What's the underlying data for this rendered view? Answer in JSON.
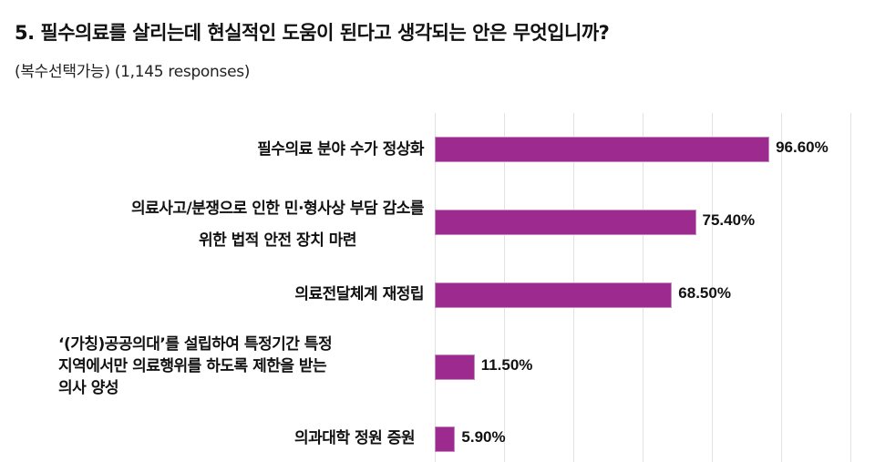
{
  "header": {
    "title": "5. 필수의료를 살리는데 현실적인 도움이 된다고 생각되는 안은 무엇입니까?",
    "subtitle": "(복수선택가능) (1,145 responses)"
  },
  "colors": {
    "bar": "#9c2a8f",
    "gridline": "#e3e3e3"
  },
  "chart_data": {
    "type": "bar",
    "orientation": "horizontal",
    "title": "5. 필수의료를 살리는데 현실적인 도움이 된다고 생각되는 안은 무엇입니까?",
    "subtitle": "(복수선택가능) (1,145 responses)",
    "xlabel": "",
    "ylabel": "",
    "xlim": [
      0,
      120
    ],
    "grid": true,
    "legend": null,
    "categories": [
      "필수의료 분야 수가 정상화",
      "의료사고/분쟁으로 인한 민·형사상 부담 감소를 위한 법적 안전 장치 마련",
      "의료전달체계 재정립",
      "'(가칭)공공의대'를 설립하여 특정기간 특정 지역에서만 의료행위를 하도록 제한을 받는 의사 양성",
      "의과대학 정원 증원"
    ],
    "values": [
      96.6,
      75.4,
      68.5,
      11.5,
      5.9
    ],
    "value_labels": [
      "96.60%",
      "75.40%",
      "68.50%",
      "11.50%",
      "5.90%"
    ]
  },
  "rows": [
    {
      "lines": [
        "필수의료 분야 수가 정상화"
      ],
      "value": 96.6,
      "value_label": "96.60%"
    },
    {
      "lines": [
        "의료사고/분쟁으로 인한 민·형사상 부담 감소를",
        "위한 법적 안전 장치 마련"
      ],
      "value": 75.4,
      "value_label": "75.40%"
    },
    {
      "lines": [
        "의료전달체계 재정립"
      ],
      "value": 68.5,
      "value_label": "68.50%"
    },
    {
      "lines": [
        "‘(가칭)공공의대’를 설립하여 특정기간 특정",
        "지역에서만 의료행위를 하도록 제한을 받는",
        "의사 양성"
      ],
      "value": 11.5,
      "value_label": "11.50%"
    },
    {
      "lines": [
        "의과대학 정원 증원"
      ],
      "value": 5.9,
      "value_label": "5.90%"
    }
  ]
}
